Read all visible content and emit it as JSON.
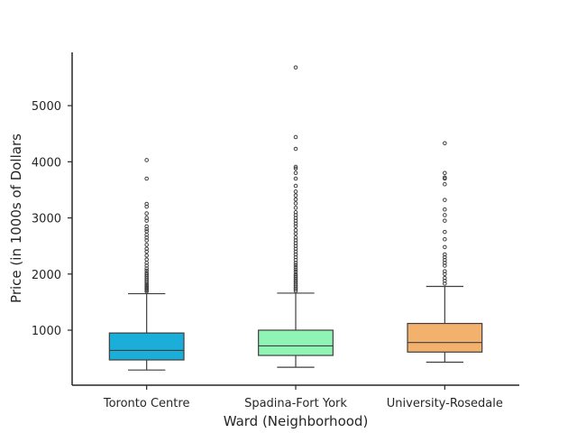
{
  "chart_data": {
    "type": "boxplot",
    "xlabel": "Ward (Neighborhood)",
    "ylabel": "Price (in 1000s of Dollars",
    "ylim": [
      20,
      5950
    ],
    "yticks": [
      1000,
      2000,
      3000,
      4000,
      5000
    ],
    "grid": false,
    "categories": [
      "Toronto Centre",
      "Spadina-Fort York",
      "University-Rosedale"
    ],
    "boxes": [
      {
        "category": "Toronto Centre",
        "color": "#1aaed8",
        "whisker_low": 290,
        "q1": 470,
        "median": 640,
        "q3": 950,
        "whisker_high": 1650,
        "outliers": [
          1690,
          1710,
          1730,
          1750,
          1770,
          1790,
          1810,
          1840,
          1870,
          1900,
          1930,
          1960,
          1990,
          2020,
          2060,
          2100,
          2150,
          2200,
          2260,
          2330,
          2400,
          2450,
          2520,
          2600,
          2650,
          2700,
          2760,
          2800,
          2850,
          2950,
          3000,
          3080,
          3200,
          3250,
          3700,
          4030
        ]
      },
      {
        "category": "Spadina-Fort York",
        "color": "#8ef5b4",
        "whisker_low": 340,
        "q1": 550,
        "median": 720,
        "q3": 1000,
        "whisker_high": 1660,
        "outliers": [
          1700,
          1730,
          1760,
          1790,
          1820,
          1850,
          1880,
          1910,
          1940,
          1970,
          2000,
          2040,
          2080,
          2120,
          2160,
          2200,
          2250,
          2300,
          2350,
          2400,
          2450,
          2500,
          2550,
          2600,
          2650,
          2720,
          2780,
          2850,
          2900,
          2950,
          3000,
          3050,
          3100,
          3180,
          3260,
          3330,
          3400,
          3470,
          3570,
          3700,
          3800,
          3880,
          3910,
          4230,
          4440,
          5680
        ]
      },
      {
        "category": "University-Rosedale",
        "color": "#f2b26e",
        "whisker_low": 430,
        "q1": 610,
        "median": 780,
        "q3": 1120,
        "whisker_high": 1780,
        "outliers": [
          1830,
          1880,
          1930,
          2000,
          2050,
          2150,
          2200,
          2250,
          2300,
          2350,
          2480,
          2620,
          2750,
          2950,
          3050,
          3150,
          3320,
          3600,
          3700,
          3720,
          3800,
          4330
        ]
      }
    ]
  }
}
